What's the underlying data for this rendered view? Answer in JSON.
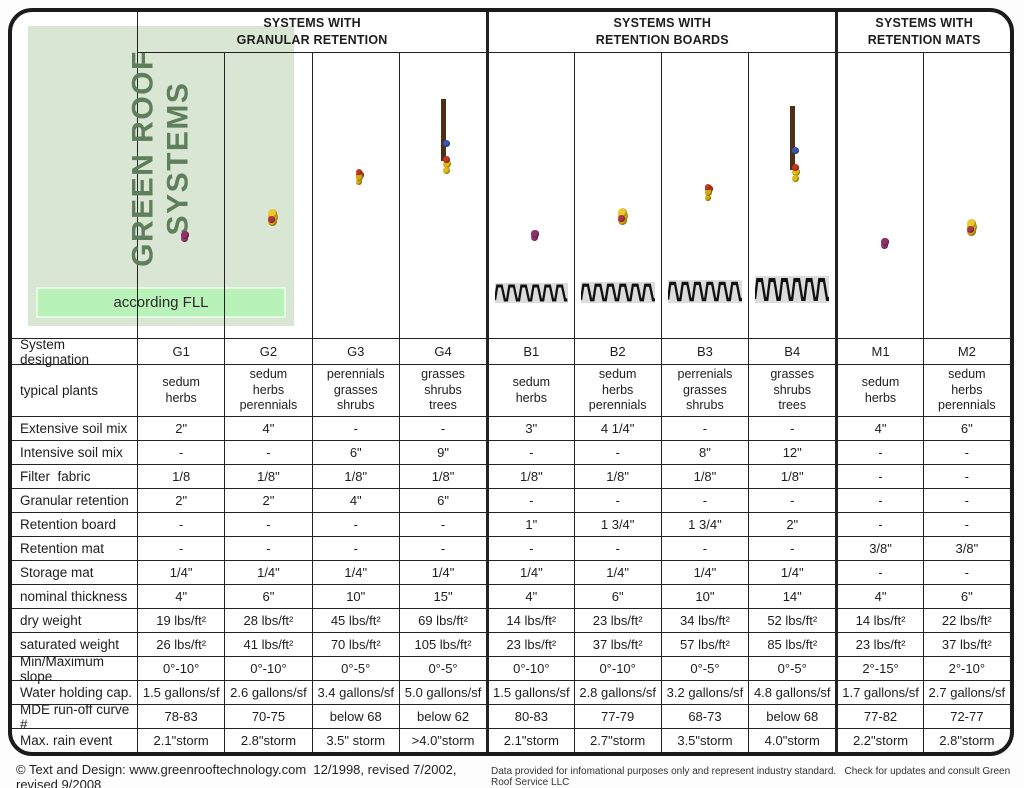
{
  "page": {
    "title_line1": "GREEN ROOF",
    "title_line2": "SYSTEMS",
    "subtitle": "according FLL",
    "footer_left": "© Text and Design: www.greenrooftechnology.com  12/1998, revised 7/2002, revised 9/2008",
    "footer_right": "Data provided for infomational purposes only and represent industry standard.   Check for updates and consult Green Roof Service LLC"
  },
  "groups": [
    {
      "label": "SYSTEMS WITH\nGRANULAR RETENTION",
      "span": 4
    },
    {
      "label": "SYSTEMS WITH\nRETENTION BOARDS",
      "span": 4
    },
    {
      "label": "SYSTEMS WITH\nRETENTION MATS",
      "span": 2
    }
  ],
  "columns": [
    {
      "id": "G1",
      "illustration": {
        "veg": "purple",
        "vegH": 26,
        "soilH": 27,
        "layer": "granular",
        "layerH": 18,
        "wave": false
      }
    },
    {
      "id": "G2",
      "illustration": {
        "veg": "yellow",
        "vegH": 33,
        "soilH": 39,
        "layer": "granular",
        "layerH": 21,
        "wave": false
      }
    },
    {
      "id": "G3",
      "illustration": {
        "veg": "grass",
        "vegH": 86,
        "soilH": 62,
        "layer": "granular",
        "layerH": 30,
        "wave": true
      }
    },
    {
      "id": "G4",
      "illustration": {
        "veg": "tree",
        "vegH": 112,
        "soilH": 78,
        "layer": "granular",
        "layerH": 34,
        "wave": true
      }
    },
    {
      "id": "B1",
      "illustration": {
        "veg": "purple",
        "vegH": 26,
        "soilH": 26,
        "layer": "board",
        "layerH": 20,
        "wave": false
      }
    },
    {
      "id": "B2",
      "illustration": {
        "veg": "yellow",
        "vegH": 33,
        "soilH": 40,
        "layer": "board",
        "layerH": 21,
        "wave": false
      }
    },
    {
      "id": "B3",
      "illustration": {
        "veg": "grass",
        "vegH": 92,
        "soilH": 52,
        "layer": "board",
        "layerH": 23,
        "wave": false
      }
    },
    {
      "id": "B4",
      "illustration": {
        "veg": "tree",
        "vegH": 116,
        "soilH": 76,
        "layer": "board",
        "layerH": 27,
        "wave": false
      }
    },
    {
      "id": "M1",
      "illustration": {
        "veg": "purple",
        "vegH": 25,
        "soilH": 42,
        "layer": "mat",
        "layerH": 5,
        "wave": false
      }
    },
    {
      "id": "M2",
      "illustration": {
        "veg": "yellow",
        "vegH": 33,
        "soilH": 53,
        "layer": "mat",
        "layerH": 5,
        "wave": false
      }
    }
  ],
  "rows": [
    {
      "label": "System designation",
      "values": [
        "G1",
        "G2",
        "G3",
        "G4",
        "B1",
        "B2",
        "B3",
        "B4",
        "M1",
        "M2"
      ]
    },
    {
      "label": "typical plants",
      "values": [
        "sedum\nherbs",
        "sedum\nherbs\nperennials",
        "perennials\ngrasses\nshrubs",
        "grasses\nshrubs\ntrees",
        "sedum\nherbs",
        "sedum\nherbs\nperennials",
        "perrenials\ngrasses\nshrubs",
        "grasses\nshrubs\ntrees",
        "sedum\nherbs",
        "sedum\nherbs\nperennials"
      ]
    },
    {
      "label": "Extensive soil mix",
      "values": [
        "2\"",
        "4\"",
        "-",
        "-",
        "3\"",
        "4 1/4\"",
        "-",
        "-",
        "4\"",
        "6\""
      ]
    },
    {
      "label": "Intensive soil mix",
      "values": [
        "-",
        "-",
        "6\"",
        "9\"",
        "-",
        "-",
        "8\"",
        "12\"",
        "-",
        "-"
      ]
    },
    {
      "label": "Filter  fabric",
      "values": [
        "1/8",
        "1/8\"",
        "1/8\"",
        "1/8\"",
        "1/8\"",
        "1/8\"",
        "1/8\"",
        "1/8\"",
        "-",
        "-"
      ]
    },
    {
      "label": "Granular retention",
      "values": [
        "2\"",
        "2\"",
        "4\"",
        "6\"",
        "-",
        "-",
        "-",
        "-",
        "-",
        "-"
      ]
    },
    {
      "label": "Retention board",
      "values": [
        "-",
        "-",
        "-",
        "-",
        "1\"",
        "1 3/4\"",
        "1 3/4\"",
        "2\"",
        "-",
        "-"
      ]
    },
    {
      "label": "Retention mat",
      "values": [
        "-",
        "-",
        "-",
        "-",
        "-",
        "-",
        "-",
        "-",
        "3/8\"",
        "3/8\""
      ]
    },
    {
      "label": "Storage mat",
      "values": [
        "1/4\"",
        "1/4\"",
        "1/4\"",
        "1/4\"",
        "1/4\"",
        "1/4\"",
        "1/4\"",
        "1/4\"",
        "-",
        "-"
      ]
    },
    {
      "label": "nominal thickness",
      "values": [
        "4\"",
        "6\"",
        "10\"",
        "15\"",
        "4\"",
        "6\"",
        "10\"",
        "14\"",
        "4\"",
        "6\""
      ]
    },
    {
      "label": "dry weight",
      "values": [
        "19 lbs/ft²",
        "28 lbs/ft²",
        "45 lbs/ft²",
        "69 lbs/ft²",
        "14 lbs/ft²",
        "23 lbs/ft²",
        "34 lbs/ft²",
        "52 lbs/ft²",
        "14 lbs/ft²",
        "22 lbs/ft²"
      ]
    },
    {
      "label": "saturated weight",
      "values": [
        "26 lbs/ft²",
        "41 lbs/ft²",
        "70 lbs/ft²",
        "105 lbs/ft²",
        "23 lbs/ft²",
        "37 lbs/ft²",
        "57 lbs/ft²",
        "85 lbs/ft²",
        "23 lbs/ft²",
        "37 lbs/ft²"
      ]
    },
    {
      "label": "Min/Maximum slope",
      "values": [
        "0°-10°",
        "0°-10°",
        "0°-5°",
        "0°-5°",
        "0°-10°",
        "0°-10°",
        "0°-5°",
        "0°-5°",
        "2°-15°",
        "2°-10°"
      ]
    },
    {
      "label": "Water holding cap.",
      "values": [
        "1.5 gallons/sf",
        "2.6 gallons/sf",
        "3.4 gallons/sf",
        "5.0 gallons/sf",
        "1.5 gallons/sf",
        "2.8 gallons/sf",
        "3.2 gallons/sf",
        "4.8 gallons/sf",
        "1.7 gallons/sf",
        "2.7 gallons/sf"
      ]
    },
    {
      "label": "MDE run-off curve #",
      "values": [
        "78-83",
        "70-75",
        "below 68",
        "below 62",
        "80-83",
        "77-79",
        "68-73",
        "below 68",
        "77-82",
        "72-77"
      ]
    },
    {
      "label": "Max. rain event",
      "values": [
        "2.1\"storm",
        "2.8\"storm",
        "3.5\" storm",
        ">4.0\"storm",
        "2.1\"storm",
        "2.7\"storm",
        "3.5\"storm",
        "4.0\"storm",
        "2.2\"storm",
        "2.8\"storm"
      ]
    }
  ],
  "colors": {
    "border": "#1b1b1b",
    "title_text_green": "#5e7e5c",
    "title_bg_green": "#d8e6d3",
    "subtitle_bg_green": "#b9f2b9",
    "granular_red": "#64180e",
    "soil_brown": "#b5762f",
    "deck_khaki": "#ebe9b4"
  }
}
